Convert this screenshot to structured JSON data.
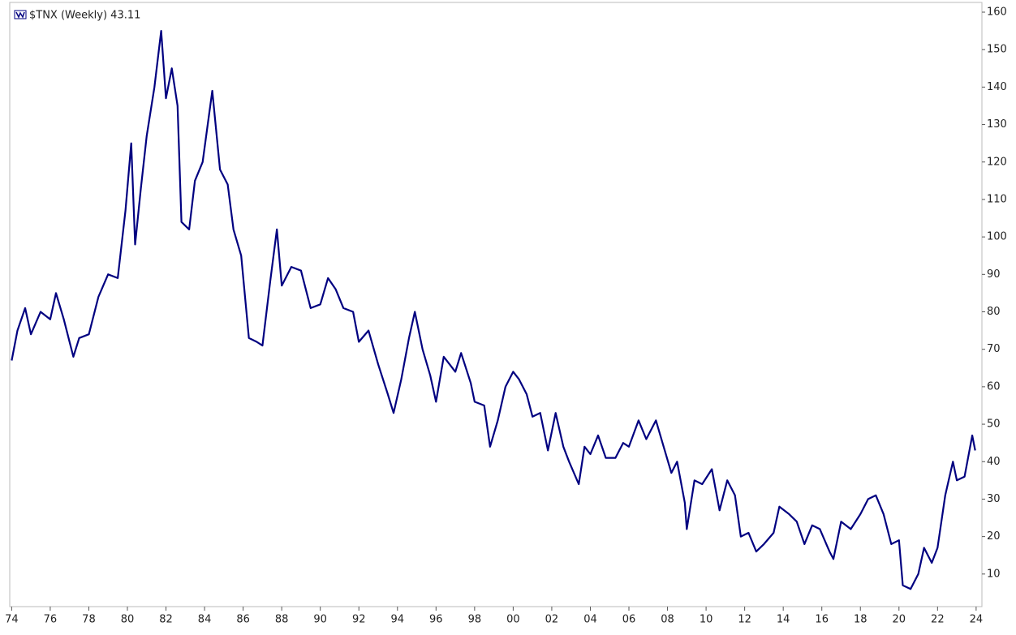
{
  "chart_data": {
    "type": "line",
    "x": [
      1974.0,
      1974.3,
      1974.7,
      1975.0,
      1975.5,
      1976.0,
      1976.3,
      1976.7,
      1977.0,
      1977.2,
      1977.5,
      1978.0,
      1978.5,
      1979.0,
      1979.5,
      1979.9,
      1980.2,
      1980.4,
      1980.7,
      1981.0,
      1981.4,
      1981.75,
      1982.0,
      1982.3,
      1982.6,
      1982.8,
      1983.2,
      1983.5,
      1983.9,
      1984.4,
      1984.8,
      1985.2,
      1985.5,
      1985.9,
      1986.3,
      1986.7,
      1987.0,
      1987.4,
      1987.75,
      1988.0,
      1988.5,
      1989.0,
      1989.5,
      1990.0,
      1990.4,
      1990.8,
      1991.2,
      1991.7,
      1992.0,
      1992.5,
      1993.0,
      1993.5,
      1993.8,
      1994.2,
      1994.6,
      1994.9,
      1995.3,
      1995.7,
      1996.0,
      1996.4,
      1996.7,
      1997.0,
      1997.3,
      1997.8,
      1998.0,
      1998.5,
      1998.8,
      1999.2,
      1999.6,
      2000.0,
      2000.3,
      2000.7,
      2001.0,
      2001.4,
      2001.8,
      2002.2,
      2002.6,
      2002.9,
      2003.4,
      2003.7,
      2004.0,
      2004.4,
      2004.8,
      2005.3,
      2005.7,
      2006.0,
      2006.5,
      2006.9,
      2007.4,
      2007.8,
      2008.2,
      2008.5,
      2008.9,
      2009.0,
      2009.4,
      2009.8,
      2010.3,
      2010.7,
      2011.1,
      2011.5,
      2011.8,
      2012.2,
      2012.6,
      2013.0,
      2013.5,
      2013.8,
      2014.3,
      2014.7,
      2015.1,
      2015.5,
      2015.9,
      2016.4,
      2016.6,
      2017.0,
      2017.5,
      2018.0,
      2018.4,
      2018.8,
      2019.2,
      2019.6,
      2020.0,
      2020.2,
      2020.6,
      2021.0,
      2021.3,
      2021.7,
      2022.0,
      2022.4,
      2022.8,
      2023.0,
      2023.4,
      2023.8,
      2023.95
    ],
    "series": [
      {
        "name": "$TNX (Weekly) 43.11",
        "color": "#000080",
        "values": [
          67,
          75,
          81,
          74,
          80,
          78,
          85,
          78,
          72,
          68,
          73,
          74,
          84,
          90,
          89,
          107,
          125,
          98,
          113,
          127,
          140,
          155,
          137,
          145,
          135,
          104,
          102,
          115,
          120,
          139,
          118,
          114,
          102,
          95,
          73,
          72,
          71,
          88,
          102,
          87,
          92,
          91,
          81,
          82,
          89,
          86,
          81,
          80,
          72,
          75,
          66,
          58,
          53,
          62,
          73,
          80,
          70,
          63,
          56,
          68,
          66,
          64,
          69,
          61,
          56,
          55,
          44,
          51,
          60,
          64,
          62,
          58,
          52,
          53,
          43,
          53,
          44,
          40,
          34,
          44,
          42,
          47,
          41,
          41,
          45,
          44,
          51,
          46,
          51,
          44,
          37,
          40,
          29,
          22,
          35,
          34,
          38,
          27,
          35,
          31,
          20,
          21,
          16,
          18,
          21,
          28,
          26,
          24,
          18,
          23,
          22,
          16,
          14,
          24,
          22,
          26,
          30,
          31,
          26,
          18,
          19,
          7,
          6,
          10,
          17,
          13,
          17,
          31,
          40,
          35,
          36,
          47,
          43
        ]
      }
    ],
    "xlim": [
      1973.9,
      2024.3
    ],
    "xticks": [
      {
        "value": 1974,
        "label": "74"
      },
      {
        "value": 1976,
        "label": "76"
      },
      {
        "value": 1978,
        "label": "78"
      },
      {
        "value": 1980,
        "label": "80"
      },
      {
        "value": 1982,
        "label": "82"
      },
      {
        "value": 1984,
        "label": "84"
      },
      {
        "value": 1986,
        "label": "86"
      },
      {
        "value": 1988,
        "label": "88"
      },
      {
        "value": 1990,
        "label": "90"
      },
      {
        "value": 1992,
        "label": "92"
      },
      {
        "value": 1994,
        "label": "94"
      },
      {
        "value": 1996,
        "label": "96"
      },
      {
        "value": 1998,
        "label": "98"
      },
      {
        "value": 2000,
        "label": "00"
      },
      {
        "value": 2002,
        "label": "02"
      },
      {
        "value": 2004,
        "label": "04"
      },
      {
        "value": 2006,
        "label": "06"
      },
      {
        "value": 2008,
        "label": "08"
      },
      {
        "value": 2010,
        "label": "10"
      },
      {
        "value": 2012,
        "label": "12"
      },
      {
        "value": 2014,
        "label": "14"
      },
      {
        "value": 2016,
        "label": "16"
      },
      {
        "value": 2018,
        "label": "18"
      },
      {
        "value": 2020,
        "label": "20"
      },
      {
        "value": 2022,
        "label": "22"
      },
      {
        "value": 2024,
        "label": "24"
      }
    ],
    "ylim": [
      1.3,
      162.6
    ],
    "yticks": [
      10,
      20,
      30,
      40,
      50,
      60,
      70,
      80,
      90,
      100,
      110,
      120,
      130,
      140,
      150,
      160
    ]
  }
}
